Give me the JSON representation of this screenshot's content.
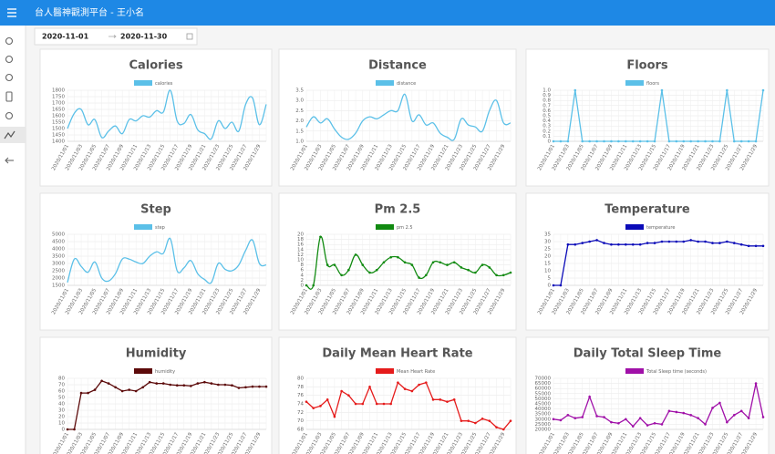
{
  "header": {
    "title": "台人醫神觀測平台 - 王小名"
  },
  "date_range": {
    "start": "2020-11-01",
    "end": "2020-11-30"
  },
  "chart_data": [
    {
      "type": "line",
      "title": "Calories",
      "smooth": true,
      "markers": false,
      "grid": true,
      "categories": [
        "2020/11/01",
        null,
        "2020/11/03",
        null,
        "2020/11/05",
        null,
        "2020/11/07",
        null,
        "2020/11/09",
        null,
        "2020/11/11",
        null,
        "2020/11/13",
        null,
        "2020/11/15",
        null,
        "2020/11/17",
        null,
        "2020/11/19",
        null,
        "2020/11/21",
        null,
        "2020/11/23",
        null,
        "2020/11/25",
        null,
        "2020/11/27",
        null,
        "2020/11/29",
        null
      ],
      "series": [
        {
          "name": "calories",
          "color": "#5bc0e8",
          "values": [
            1500,
            1620,
            1650,
            1530,
            1570,
            1430,
            1480,
            1520,
            1460,
            1570,
            1560,
            1600,
            1590,
            1640,
            1630,
            1800,
            1560,
            1540,
            1610,
            1490,
            1460,
            1420,
            1560,
            1500,
            1550,
            1480,
            1690,
            1740,
            1530,
            1690
          ]
        }
      ],
      "ylim": [
        1400,
        1800
      ],
      "yticks": [
        1400,
        1450,
        1500,
        1550,
        1600,
        1650,
        1700,
        1750,
        1800
      ]
    },
    {
      "type": "line",
      "title": "Distance",
      "smooth": true,
      "markers": false,
      "grid": true,
      "categories": [
        "2020/11/01",
        null,
        "2020/11/03",
        null,
        "2020/11/05",
        null,
        "2020/11/07",
        null,
        "2020/11/09",
        null,
        "2020/11/11",
        null,
        "2020/11/13",
        null,
        "2020/11/15",
        null,
        "2020/11/17",
        null,
        "2020/11/19",
        null,
        "2020/11/21",
        null,
        "2020/11/23",
        null,
        "2020/11/25",
        null,
        "2020/11/27",
        null,
        "2020/11/29",
        null
      ],
      "series": [
        {
          "name": "distance",
          "color": "#5bc0e8",
          "values": [
            1.7,
            2.2,
            1.9,
            2.1,
            1.6,
            1.2,
            1.1,
            1.4,
            2.0,
            2.2,
            2.1,
            2.3,
            2.5,
            2.5,
            3.3,
            2.0,
            2.3,
            1.8,
            1.9,
            1.4,
            1.2,
            1.1,
            2.1,
            1.8,
            1.7,
            1.5,
            2.5,
            3.0,
            1.9,
            1.9
          ]
        }
      ],
      "ylim": [
        1,
        3.5
      ],
      "yticks": [
        {
          "value": 1,
          "label": "1.0"
        },
        1.5,
        {
          "value": 2,
          "label": "2.0"
        },
        2.5,
        {
          "value": 3,
          "label": "3.0"
        },
        3.5
      ]
    },
    {
      "type": "line",
      "title": "Floors",
      "smooth": false,
      "markers": true,
      "grid": true,
      "categories": [
        "2020/11/01",
        null,
        "2020/11/03",
        null,
        "2020/11/05",
        null,
        "2020/11/07",
        null,
        "2020/11/09",
        null,
        "2020/11/11",
        null,
        "2020/11/13",
        null,
        "2020/11/15",
        null,
        "2020/11/17",
        null,
        "2020/11/19",
        null,
        "2020/11/21",
        null,
        "2020/11/23",
        null,
        "2020/11/25",
        null,
        "2020/11/27",
        null,
        "2020/11/29",
        null
      ],
      "series": [
        {
          "name": "floors",
          "color": "#5bc0e8",
          "values": [
            0,
            0,
            0,
            1,
            0,
            0,
            0,
            0,
            0,
            0,
            0,
            0,
            0,
            0,
            0,
            1,
            0,
            0,
            0,
            0,
            0,
            0,
            0,
            0,
            1,
            0,
            0,
            0,
            0,
            1
          ]
        }
      ],
      "ylim": [
        0,
        1
      ],
      "yticks": [
        0,
        0.1,
        0.2,
        0.3,
        0.4,
        0.5,
        0.6,
        0.7,
        0.8,
        0.9,
        {
          "value": 1,
          "label": "1.0"
        }
      ]
    },
    {
      "type": "line",
      "title": "Step",
      "smooth": true,
      "markers": false,
      "grid": true,
      "categories": [
        "2020/11/01",
        null,
        "2020/11/03",
        null,
        "2020/11/05",
        null,
        "2020/11/07",
        null,
        "2020/11/09",
        null,
        "2020/11/11",
        null,
        "2020/11/13",
        null,
        "2020/11/15",
        null,
        "2020/11/17",
        null,
        "2020/11/19",
        null,
        "2020/11/21",
        null,
        "2020/11/23",
        null,
        "2020/11/25",
        null,
        "2020/11/27",
        null,
        "2020/11/29",
        null
      ],
      "series": [
        {
          "name": "step",
          "color": "#5bc0e8",
          "values": [
            1700,
            3300,
            2800,
            2400,
            3100,
            2000,
            1800,
            2300,
            3300,
            3300,
            3100,
            3000,
            3500,
            3800,
            3700,
            4700,
            2500,
            2700,
            3200,
            2300,
            1900,
            1700,
            3000,
            2600,
            2500,
            2900,
            3900,
            4600,
            3000,
            2900
          ]
        }
      ],
      "ylim": [
        1500,
        5000
      ],
      "yticks": [
        1500,
        2000,
        2500,
        3000,
        3500,
        4000,
        4500,
        5000
      ]
    },
    {
      "type": "line",
      "title": "Pm 2.5",
      "smooth": true,
      "markers": true,
      "grid": true,
      "categories": [
        "2020/11/01",
        null,
        "2020/11/03",
        null,
        "2020/11/05",
        null,
        "2020/11/07",
        null,
        "2020/11/09",
        null,
        "2020/11/11",
        null,
        "2020/11/13",
        null,
        "2020/11/15",
        null,
        "2020/11/17",
        null,
        "2020/11/19",
        null,
        "2020/11/21",
        null,
        "2020/11/23",
        null,
        "2020/11/25",
        null,
        "2020/11/27",
        null,
        "2020/11/29",
        null
      ],
      "series": [
        {
          "name": "pm 2.5",
          "color": "#118a11",
          "values": [
            0,
            0,
            19,
            8,
            8,
            4,
            6,
            12,
            8,
            5,
            6,
            9,
            11,
            11,
            9,
            8,
            3,
            4,
            9,
            9,
            8,
            9,
            7,
            6,
            5,
            8,
            7,
            4,
            4,
            5
          ]
        }
      ],
      "ylim": [
        0,
        20
      ],
      "yticks": [
        0,
        2,
        4,
        6,
        8,
        10,
        12,
        14,
        16,
        18,
        20
      ]
    },
    {
      "type": "line",
      "title": "Temperature",
      "smooth": false,
      "markers": true,
      "grid": true,
      "categories": [
        "2020/11/01",
        null,
        "2020/11/03",
        null,
        "2020/11/05",
        null,
        "2020/11/07",
        null,
        "2020/11/09",
        null,
        "2020/11/11",
        null,
        "2020/11/13",
        null,
        "2020/11/15",
        null,
        "2020/11/17",
        null,
        "2020/11/19",
        null,
        "2020/11/21",
        null,
        "2020/11/23",
        null,
        "2020/11/25",
        null,
        "2020/11/27",
        null,
        "2020/11/29",
        null
      ],
      "series": [
        {
          "name": "temperature",
          "color": "#0b0bb8",
          "values": [
            0,
            0,
            28,
            28,
            29,
            30,
            31,
            29,
            28,
            28,
            28,
            28,
            28,
            29,
            29,
            30,
            30,
            30,
            30,
            31,
            30,
            30,
            29,
            29,
            30,
            29,
            28,
            27,
            27,
            27
          ]
        }
      ],
      "ylim": [
        0,
        35
      ],
      "yticks": [
        0,
        5,
        10,
        15,
        20,
        25,
        30,
        35
      ]
    },
    {
      "type": "line",
      "title": "Humidity",
      "smooth": false,
      "markers": true,
      "grid": true,
      "categories": [
        "2020/11/01",
        null,
        "2020/11/03",
        null,
        "2020/11/05",
        null,
        "2020/11/07",
        null,
        "2020/11/09",
        null,
        "2020/11/11",
        null,
        "2020/11/13",
        null,
        "2020/11/15",
        null,
        "2020/11/17",
        null,
        "2020/11/19",
        null,
        "2020/11/21",
        null,
        "2020/11/23",
        null,
        "2020/11/25",
        null,
        "2020/11/27",
        null,
        "2020/11/29",
        null
      ],
      "series": [
        {
          "name": "humidity",
          "color": "#5c0a0a",
          "values": [
            0,
            0,
            57,
            57,
            62,
            76,
            72,
            66,
            60,
            62,
            60,
            66,
            74,
            72,
            72,
            70,
            69,
            69,
            68,
            72,
            74,
            72,
            70,
            70,
            69,
            65,
            66,
            67,
            67,
            67
          ]
        }
      ],
      "ylim": [
        0,
        80
      ],
      "yticks": [
        0,
        10,
        20,
        30,
        40,
        50,
        60,
        70,
        80
      ]
    },
    {
      "type": "line",
      "title": "Daily Mean Heart Rate",
      "smooth": false,
      "markers": true,
      "grid": true,
      "categories": [
        "2020/11/01",
        null,
        "2020/11/03",
        null,
        "2020/11/05",
        null,
        "2020/11/07",
        null,
        "2020/11/09",
        null,
        "2020/11/11",
        null,
        "2020/11/13",
        null,
        "2020/11/15",
        null,
        "2020/11/17",
        null,
        "2020/11/19",
        null,
        "2020/11/21",
        null,
        "2020/11/23",
        null,
        "2020/11/25",
        null,
        "2020/11/27",
        null,
        "2020/11/29",
        null
      ],
      "series": [
        {
          "name": "Mean Heart Rate",
          "color": "#e51b1b",
          "values": [
            74.5,
            73,
            73.5,
            75,
            71,
            77,
            76,
            74,
            74,
            78,
            74,
            74,
            74,
            79,
            77.5,
            77,
            78.5,
            79,
            75,
            75,
            74.5,
            75,
            70,
            70,
            69.5,
            70.5,
            70,
            68.5,
            68,
            70
          ]
        }
      ],
      "ylim": [
        68,
        80
      ],
      "yticks": [
        68,
        70,
        72,
        74,
        76,
        78,
        80
      ]
    },
    {
      "type": "line",
      "title": "Daily Total Sleep Time",
      "smooth": false,
      "markers": true,
      "grid": true,
      "categories": [
        "2020/11/01",
        null,
        "2020/11/03",
        null,
        "2020/11/05",
        null,
        "2020/11/07",
        null,
        "2020/11/09",
        null,
        "2020/11/11",
        null,
        "2020/11/13",
        null,
        "2020/11/15",
        null,
        "2020/11/17",
        null,
        "2020/11/19",
        null,
        "2020/11/21",
        null,
        "2020/11/23",
        null,
        "2020/11/25",
        null,
        "2020/11/27",
        null,
        "2020/11/29",
        null
      ],
      "series": [
        {
          "name": "Total Sleep time (seconds)",
          "color": "#a010a8",
          "values": [
            30000,
            29000,
            34000,
            31000,
            32000,
            52000,
            33000,
            32000,
            27000,
            26000,
            30000,
            23000,
            31000,
            24000,
            26000,
            25000,
            38000,
            37000,
            36000,
            34000,
            31000,
            25000,
            41000,
            46000,
            27000,
            34000,
            38000,
            31000,
            65000,
            32000
          ]
        }
      ],
      "ylim": [
        20000,
        70000
      ],
      "yticks": [
        20000,
        25000,
        30000,
        35000,
        40000,
        45000,
        50000,
        55000,
        60000,
        65000,
        70000
      ]
    }
  ]
}
